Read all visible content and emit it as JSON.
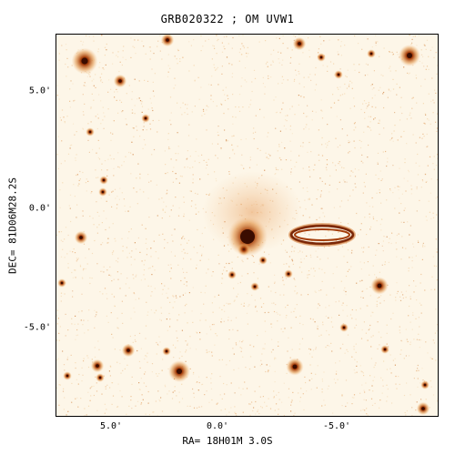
{
  "title": "GRB020322 ; OM UVW1",
  "xlabel": "RA= 18H01M 3.0S",
  "ylabel": "DEC= 81D06M28.2S",
  "x_ticks": [
    "5.0'",
    "0.0'",
    "-5.0'"
  ],
  "y_ticks": [
    "5.0'",
    "0.0'",
    "-5.0'"
  ],
  "colors": {
    "background": "#fdf6e8",
    "star_core": "#3a0c00",
    "star_mid": "#a43d0a",
    "star_halo": "#e39a52",
    "diffuse": "#f2c28f"
  }
}
